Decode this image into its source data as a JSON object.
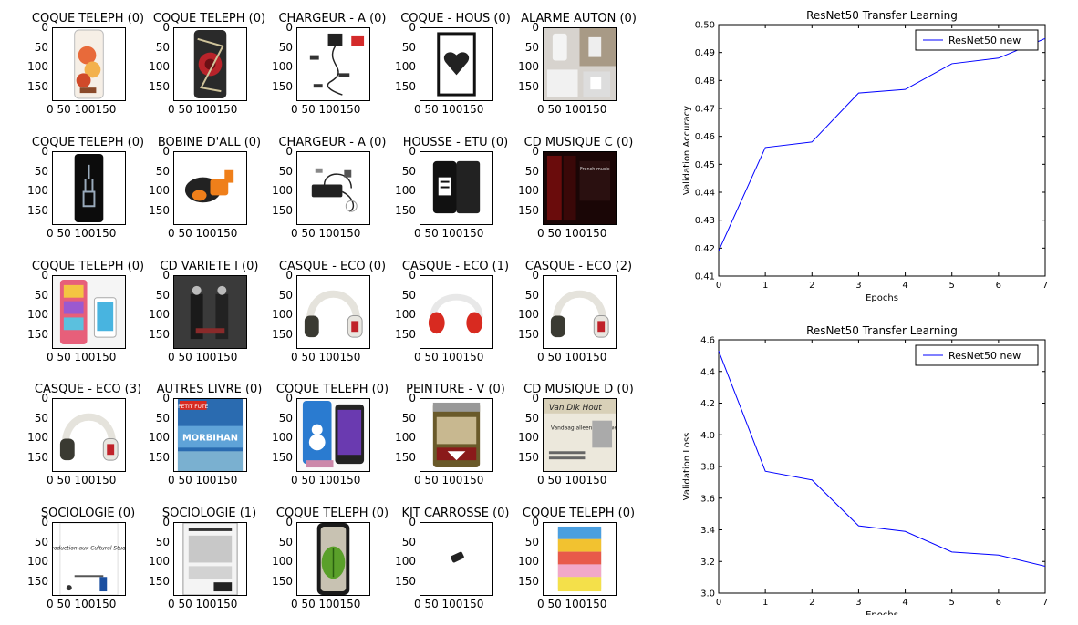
{
  "thumbnails": {
    "y_ticks": [
      "0",
      "50",
      "100",
      "150"
    ],
    "x_ticks": "0  50 100150",
    "x_ticks_alt": "0  50  100150",
    "rows": [
      [
        {
          "title": "COQUE TELEPH (0)",
          "icon": "phone-case-cartoon-icon"
        },
        {
          "title": "COQUE TELEPH (0)",
          "icon": "phone-case-rose-icon"
        },
        {
          "title": "CHARGEUR - A (0)",
          "icon": "charger-cables-icon"
        },
        {
          "title": "COQUE - HOUS (0)",
          "icon": "heart-case-icon"
        },
        {
          "title": "ALARME AUTON (0)",
          "icon": "door-alarm-icon"
        }
      ],
      [
        {
          "title": "COQUE TELEPH (0)",
          "icon": "phone-case-xray-icon"
        },
        {
          "title": "BOBINE D'ALL (0)",
          "icon": "ignition-coil-icon"
        },
        {
          "title": "CHARGEUR - A (0)",
          "icon": "laptop-charger-icon"
        },
        {
          "title": "HOUSSE - ETU (0)",
          "icon": "flip-case-icon"
        },
        {
          "title": "CD MUSIQUE C (0)",
          "icon": "cd-cover-icon"
        }
      ],
      [
        {
          "title": "COQUE TELEPH (0)",
          "icon": "colorful-phone-icon"
        },
        {
          "title": "CD VARIETE I (0)",
          "icon": "cd-variete-icon"
        },
        {
          "title": "CASQUE - ECO (0)",
          "icon": "headphones-white-icon"
        },
        {
          "title": "CASQUE - ECO (1)",
          "icon": "headphones-red-icon"
        },
        {
          "title": "CASQUE - ECO (2)",
          "icon": "headphones-white-icon"
        }
      ],
      [
        {
          "title": "CASQUE - ECO (3)",
          "icon": "headphones-white-icon"
        },
        {
          "title": "AUTRES LIVRE (0)",
          "icon": "book-morbihan-icon"
        },
        {
          "title": "COQUE TELEPH (0)",
          "icon": "phone-snowman-icon"
        },
        {
          "title": "PEINTURE - V (0)",
          "icon": "paint-can-icon"
        },
        {
          "title": "CD MUSIQUE D (0)",
          "icon": "newspaper-cd-icon"
        }
      ],
      [
        {
          "title": "SOCIOLOGIE (0)",
          "icon": "book-cultural-studies-icon"
        },
        {
          "title": "SOCIOLOGIE (1)",
          "icon": "book-back-cover-icon"
        },
        {
          "title": "COQUE TELEPH (0)",
          "icon": "phone-case-leaf-icon"
        },
        {
          "title": "KIT CARROSSE (0)",
          "icon": "small-part-icon"
        },
        {
          "title": "COQUE TELEPH (0)",
          "icon": "striped-wallet-case-icon"
        }
      ]
    ],
    "thumb_text": {
      "morbihan": "MORBIHAN",
      "petit_fute": "PETIT FUTE",
      "cultural": "Introduction aux Cultural Studies",
      "french": "French music",
      "vandaag": "Vandaag alleen maar weinaars"
    }
  },
  "chart_data": [
    {
      "type": "line",
      "title": "ResNet50 Transfer Learning",
      "xlabel": "Epochs",
      "ylabel": "Validation Accuracy",
      "x": [
        0,
        1,
        2,
        3,
        4,
        5,
        6,
        7
      ],
      "series": [
        {
          "name": "ResNet50 new",
          "values": [
            0.419,
            0.456,
            0.458,
            0.4755,
            0.4768,
            0.486,
            0.488,
            0.495
          ],
          "color": "#0000ff"
        }
      ],
      "xlim": [
        0,
        7
      ],
      "ylim": [
        0.41,
        0.5
      ],
      "x_ticks": [
        "0",
        "1",
        "2",
        "3",
        "4",
        "5",
        "6",
        "7"
      ],
      "y_ticks": [
        "0.41",
        "0.42",
        "0.43",
        "0.44",
        "0.45",
        "0.46",
        "0.47",
        "0.48",
        "0.49",
        "0.50"
      ],
      "legend": "top-right",
      "grid": false
    },
    {
      "type": "line",
      "title": "ResNet50 Transfer Learning",
      "xlabel": "Epochs",
      "ylabel": "Validation Loss",
      "x": [
        0,
        1,
        2,
        3,
        4,
        5,
        6,
        7
      ],
      "series": [
        {
          "name": "ResNet50 new",
          "values": [
            4.53,
            3.77,
            3.715,
            3.425,
            3.39,
            3.26,
            3.24,
            3.17
          ],
          "color": "#0000ff"
        }
      ],
      "xlim": [
        0,
        7
      ],
      "ylim": [
        3.0,
        4.6
      ],
      "x_ticks": [
        "0",
        "1",
        "2",
        "3",
        "4",
        "5",
        "6",
        "7"
      ],
      "y_ticks": [
        "3.0",
        "3.2",
        "3.4",
        "3.6",
        "3.8",
        "4.0",
        "4.2",
        "4.4",
        "4.6"
      ],
      "legend": "top-right",
      "grid": false
    }
  ]
}
